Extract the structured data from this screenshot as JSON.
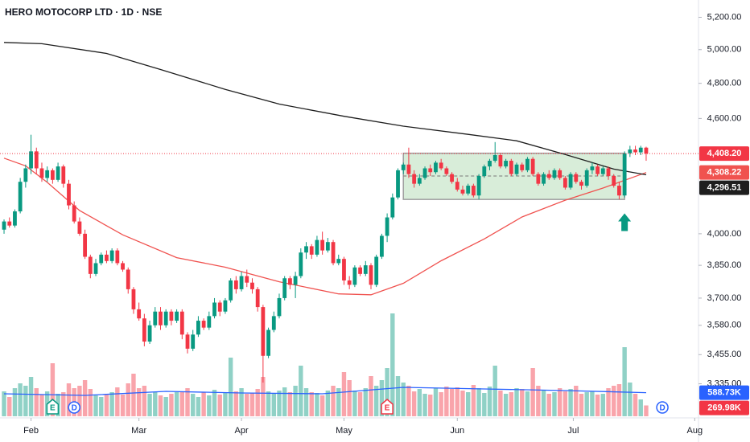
{
  "chart_data": {
    "type": "candlestick",
    "title": "HERO MOTOCORP LTD · 1D · NSE",
    "xlim": [
      -0.75,
      128.7
    ],
    "xticks": [
      {
        "value": 5,
        "label": "Feb"
      },
      {
        "value": 25,
        "label": "Mar"
      },
      {
        "value": 44,
        "label": "Apr"
      },
      {
        "value": 63,
        "label": "May"
      },
      {
        "value": 84,
        "label": "Jun"
      },
      {
        "value": 105.5,
        "label": "Jul"
      },
      {
        "value": 128,
        "label": "Aug"
      }
    ],
    "ylim": [
      3200,
      5310
    ],
    "log_scale": true,
    "yticks": [
      {
        "value": 5200,
        "label": "5,200.00"
      },
      {
        "value": 5000,
        "label": "5,000.00"
      },
      {
        "value": 4800,
        "label": "4,800.00"
      },
      {
        "value": 4600,
        "label": "4,600.00"
      },
      {
        "value": 4000,
        "label": "4,000.00"
      },
      {
        "value": 3850,
        "label": "3,850.00"
      },
      {
        "value": 3700,
        "label": "3,700.00"
      },
      {
        "value": 3580,
        "label": "3,580.00"
      },
      {
        "value": 3455,
        "label": "3,455.00"
      },
      {
        "value": 3335,
        "label": "3,335.00"
      }
    ],
    "up_color": "#089981",
    "down_color": "#f23645",
    "candles": [
      [
        4020,
        4070,
        4000,
        4060
      ],
      [
        4060,
        4080,
        4030,
        4040
      ],
      [
        4040,
        4120,
        4030,
        4110
      ],
      [
        4110,
        4280,
        4100,
        4260
      ],
      [
        4260,
        4350,
        4230,
        4330
      ],
      [
        4330,
        4510,
        4300,
        4420
      ],
      [
        4420,
        4440,
        4300,
        4330
      ],
      [
        4330,
        4360,
        4260,
        4280
      ],
      [
        4280,
        4340,
        4260,
        4320
      ],
      [
        4320,
        4330,
        4250,
        4270
      ],
      [
        4270,
        4360,
        4260,
        4340
      ],
      [
        4340,
        4350,
        4230,
        4250
      ],
      [
        4250,
        4270,
        4120,
        4140
      ],
      [
        4140,
        4160,
        4050,
        4060
      ],
      [
        4060,
        4080,
        3990,
        4000
      ],
      [
        4000,
        4020,
        3880,
        3890
      ],
      [
        3890,
        3900,
        3790,
        3810
      ],
      [
        3810,
        3880,
        3800,
        3860
      ],
      [
        3860,
        3910,
        3850,
        3900
      ],
      [
        3900,
        3920,
        3860,
        3870
      ],
      [
        3870,
        3930,
        3860,
        3920
      ],
      [
        3920,
        3930,
        3850,
        3860
      ],
      [
        3860,
        3870,
        3820,
        3830
      ],
      [
        3830,
        3840,
        3720,
        3740
      ],
      [
        3740,
        3750,
        3630,
        3650
      ],
      [
        3650,
        3680,
        3600,
        3610
      ],
      [
        3610,
        3630,
        3490,
        3510
      ],
      [
        3510,
        3600,
        3500,
        3580
      ],
      [
        3580,
        3660,
        3570,
        3640
      ],
      [
        3640,
        3660,
        3560,
        3580
      ],
      [
        3580,
        3650,
        3570,
        3640
      ],
      [
        3640,
        3650,
        3580,
        3600
      ],
      [
        3600,
        3650,
        3590,
        3640
      ],
      [
        3640,
        3650,
        3520,
        3540
      ],
      [
        3540,
        3550,
        3460,
        3480
      ],
      [
        3480,
        3560,
        3470,
        3540
      ],
      [
        3540,
        3620,
        3530,
        3600
      ],
      [
        3600,
        3610,
        3560,
        3570
      ],
      [
        3570,
        3640,
        3560,
        3620
      ],
      [
        3620,
        3700,
        3610,
        3680
      ],
      [
        3680,
        3690,
        3620,
        3640
      ],
      [
        3640,
        3700,
        3630,
        3690
      ],
      [
        3690,
        3790,
        3680,
        3780
      ],
      [
        3780,
        3800,
        3720,
        3740
      ],
      [
        3740,
        3820,
        3730,
        3800
      ],
      [
        3800,
        3830,
        3750,
        3770
      ],
      [
        3770,
        3790,
        3720,
        3740
      ],
      [
        3740,
        3750,
        3640,
        3660
      ],
      [
        3660,
        3670,
        3340,
        3450
      ],
      [
        3450,
        3570,
        3440,
        3560
      ],
      [
        3560,
        3640,
        3550,
        3620
      ],
      [
        3620,
        3720,
        3610,
        3700
      ],
      [
        3700,
        3800,
        3690,
        3790
      ],
      [
        3790,
        3800,
        3740,
        3760
      ],
      [
        3760,
        3820,
        3700,
        3800
      ],
      [
        3800,
        3930,
        3790,
        3910
      ],
      [
        3910,
        3960,
        3880,
        3940
      ],
      [
        3940,
        3950,
        3880,
        3900
      ],
      [
        3900,
        3990,
        3890,
        3970
      ],
      [
        3970,
        4010,
        3900,
        3920
      ],
      [
        3920,
        3980,
        3910,
        3960
      ],
      [
        3960,
        3970,
        3850,
        3860
      ],
      [
        3860,
        3900,
        3850,
        3880
      ],
      [
        3880,
        3890,
        3760,
        3780
      ],
      [
        3780,
        3800,
        3740,
        3760
      ],
      [
        3760,
        3850,
        3750,
        3840
      ],
      [
        3840,
        3850,
        3800,
        3810
      ],
      [
        3810,
        3870,
        3800,
        3850
      ],
      [
        3850,
        3860,
        3740,
        3760
      ],
      [
        3760,
        3900,
        3750,
        3890
      ],
      [
        3890,
        4000,
        3880,
        3990
      ],
      [
        3990,
        4100,
        3960,
        4080
      ],
      [
        4080,
        4200,
        4070,
        4180
      ],
      [
        4180,
        4330,
        4170,
        4320
      ],
      [
        4320,
        4360,
        4300,
        4350
      ],
      [
        4350,
        4440,
        4280,
        4300
      ],
      [
        4300,
        4320,
        4230,
        4250
      ],
      [
        4250,
        4300,
        4240,
        4280
      ],
      [
        4280,
        4340,
        4270,
        4330
      ],
      [
        4330,
        4350,
        4290,
        4310
      ],
      [
        4310,
        4370,
        4300,
        4360
      ],
      [
        4360,
        4380,
        4320,
        4330
      ],
      [
        4330,
        4340,
        4290,
        4300
      ],
      [
        4300,
        4310,
        4250,
        4260
      ],
      [
        4260,
        4280,
        4210,
        4220
      ],
      [
        4220,
        4240,
        4190,
        4200
      ],
      [
        4200,
        4250,
        4190,
        4240
      ],
      [
        4240,
        4250,
        4180,
        4190
      ],
      [
        4190,
        4300,
        4170,
        4290
      ],
      [
        4290,
        4350,
        4280,
        4340
      ],
      [
        4340,
        4380,
        4320,
        4370
      ],
      [
        4370,
        4470,
        4360,
        4400
      ],
      [
        4400,
        4410,
        4330,
        4340
      ],
      [
        4340,
        4380,
        4330,
        4370
      ],
      [
        4370,
        4380,
        4290,
        4300
      ],
      [
        4300,
        4360,
        4290,
        4350
      ],
      [
        4350,
        4360,
        4310,
        4320
      ],
      [
        4320,
        4390,
        4310,
        4380
      ],
      [
        4380,
        4390,
        4290,
        4300
      ],
      [
        4300,
        4310,
        4240,
        4250
      ],
      [
        4250,
        4310,
        4240,
        4300
      ],
      [
        4300,
        4320,
        4270,
        4280
      ],
      [
        4280,
        4330,
        4270,
        4320
      ],
      [
        4320,
        4330,
        4270,
        4280
      ],
      [
        4280,
        4290,
        4220,
        4230
      ],
      [
        4230,
        4310,
        4220,
        4300
      ],
      [
        4300,
        4310,
        4250,
        4260
      ],
      [
        4260,
        4270,
        4220,
        4240
      ],
      [
        4240,
        4330,
        4230,
        4320
      ],
      [
        4320,
        4360,
        4300,
        4340
      ],
      [
        4340,
        4350,
        4290,
        4300
      ],
      [
        4300,
        4340,
        4290,
        4330
      ],
      [
        4330,
        4340,
        4270,
        4290
      ],
      [
        4290,
        4300,
        4230,
        4240
      ],
      [
        4240,
        4260,
        4170,
        4190
      ],
      [
        4190,
        4420,
        4180,
        4410
      ],
      [
        4410,
        4450,
        4390,
        4430
      ],
      [
        4430,
        4450,
        4400,
        4415
      ],
      [
        4415,
        4450,
        4400,
        4440
      ],
      [
        4440,
        4445,
        4370,
        4408.2
      ]
    ],
    "close_label": "4,408.20",
    "moving_averages": [
      {
        "color": "#f0524f",
        "x": [
          0,
          4,
          8,
          14,
          22,
          32,
          41,
          51,
          62,
          68,
          74,
          81,
          89,
          96,
          104,
          111,
          119
        ],
        "values": [
          4384,
          4343,
          4257,
          4114,
          3995,
          3886,
          3841,
          3774,
          3719,
          3715,
          3767,
          3871,
          3975,
          4082,
          4166,
          4228,
          4308.22
        ],
        "value_label": "4,308.22"
      },
      {
        "color": "#1e1e1e",
        "x": [
          0,
          7,
          19,
          29,
          41,
          51,
          63,
          74,
          86,
          95,
          104,
          113,
          119
        ],
        "values": [
          5044,
          5036,
          4977,
          4881,
          4765,
          4681,
          4612,
          4557,
          4512,
          4477,
          4403,
          4326,
          4296.51
        ],
        "value_label": "4,296.51"
      }
    ],
    "volume": {
      "values": [
        620,
        480,
        700,
        820,
        760,
        980,
        700,
        540,
        620,
        1320,
        560,
        600,
        820,
        700,
        760,
        900,
        680,
        520,
        480,
        560,
        600,
        720,
        540,
        820,
        1060,
        700,
        760,
        560,
        600,
        520,
        480,
        560,
        600,
        620,
        700,
        560,
        480,
        600,
        520,
        660,
        540,
        580,
        1460,
        620,
        700,
        560,
        580,
        680,
        980,
        620,
        560,
        640,
        720,
        600,
        760,
        1260,
        700,
        600,
        580,
        520,
        640,
        760,
        700,
        1100,
        900,
        640,
        600,
        700,
        1000,
        760,
        900,
        1200,
        2560,
        1000,
        840,
        760,
        620,
        680,
        560,
        540,
        700,
        600,
        740,
        680,
        720,
        640,
        600,
        780,
        700,
        580,
        740,
        1260,
        640,
        560,
        600,
        700,
        680,
        620,
        1200,
        760,
        640,
        560,
        600,
        700,
        620,
        680,
        760,
        560,
        600,
        620,
        540,
        560,
        700,
        760,
        800,
        1720,
        840,
        560,
        420,
        269.98
      ],
      "value_label": "269.98K",
      "ma": {
        "color": "#2962ff",
        "x": [
          0,
          15,
          30,
          44,
          59,
          74,
          89,
          104,
          119
        ],
        "values": [
          560,
          520,
          620,
          580,
          560,
          720,
          680,
          640,
          588.73
        ],
        "value_label": "588.73K"
      }
    },
    "events": [
      {
        "x": 9,
        "label": "E",
        "color": "#089981"
      },
      {
        "x": 13,
        "label": "D",
        "color": "#2962ff"
      },
      {
        "x": 71,
        "label": "E",
        "color": "#f23645"
      },
      {
        "x": 122,
        "label": "D",
        "color": "#2962ff"
      }
    ],
    "range_box": {
      "x": [
        74,
        115
      ],
      "top": 4410,
      "bottom": 4170,
      "mid": 4290
    },
    "arrow": {
      "x": 115,
      "value": 4100
    }
  }
}
